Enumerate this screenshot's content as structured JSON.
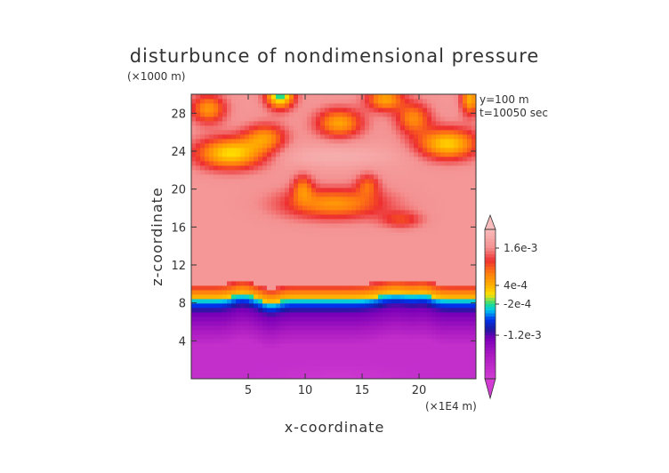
{
  "chart_data": {
    "type": "heatmap",
    "title": "disturbunce of nondimensional pressure",
    "xlabel": "x-coordinate",
    "ylabel": "z-coordinate",
    "x_unit": "(×1E4 m)",
    "y_unit": "(×1000 m)",
    "annotations": [
      "y=100 m",
      "t=10050 sec"
    ],
    "xlim": [
      0,
      25
    ],
    "ylim": [
      0,
      30
    ],
    "x_ticks": [
      5,
      10,
      15,
      20
    ],
    "y_ticks": [
      4,
      8,
      12,
      16,
      20,
      24,
      28
    ],
    "colorbar": {
      "labels": [
        {
          "text": "1.6e-3",
          "value": 0.0016
        },
        {
          "text": "4e-4",
          "value": 0.0004
        },
        {
          "text": "-2e-4",
          "value": -0.0002
        },
        {
          "text": "-1.2e-3",
          "value": -0.0012
        }
      ],
      "min": -0.0026,
      "max": 0.0022
    },
    "colors": {
      "high_pink": "#f8c0c0",
      "red": "#ee2222",
      "orange": "#ffa500",
      "yellow": "#ffe000",
      "green": "#22dd88",
      "cyan": "#00ccee",
      "blue": "#0000cc",
      "purple": "#8800bb",
      "magenta": "#cc33cc"
    }
  }
}
